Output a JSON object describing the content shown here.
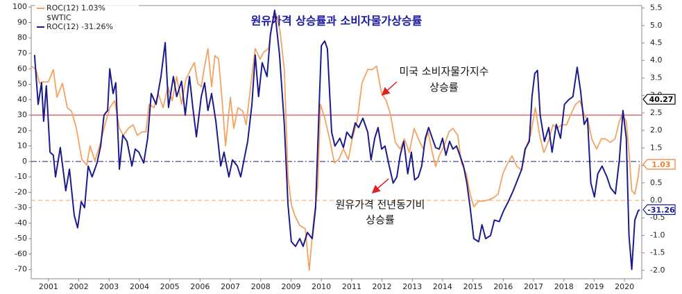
{
  "chart_data": {
    "type": "line",
    "title": "원유가격 상승률과 소비자물가상승률",
    "legend_group_label": "$WTIC",
    "annotations": [
      {
        "lines": [
          "미국 소비자물가지수",
          "상승률"
        ]
      },
      {
        "lines": [
          "원유가격 전년동기비",
          "상승률"
        ]
      }
    ],
    "xlim": [
      2000.43,
      2020.57
    ],
    "xticks": [
      2001,
      2002,
      2003,
      2004,
      2005,
      2006,
      2007,
      2008,
      2009,
      2010,
      2011,
      2012,
      2013,
      2014,
      2015,
      2016,
      2017,
      2018,
      2019,
      2020
    ],
    "ylim": [
      -76,
      101
    ],
    "yticks": [
      -70,
      -60,
      -50,
      -40,
      -30,
      -20,
      -10,
      0,
      10,
      20,
      30,
      40,
      50,
      60,
      70,
      80,
      90,
      100
    ],
    "y2lim": [
      -2.24,
      5.57
    ],
    "y2ticks": [
      {
        "value": -2,
        "label": "-2.0"
      },
      {
        "value": -1.5,
        "label": "-1.5"
      },
      {
        "value": -1,
        "label": "-1.0"
      },
      {
        "value": -0.5,
        "label": "-0.5"
      },
      {
        "value": 0,
        "label": "0.0"
      },
      {
        "value": 0.5,
        "label": "0.5"
      },
      {
        "value": 1,
        "label": "1.0"
      },
      {
        "value": 1.5,
        "label": "1.5"
      },
      {
        "value": 2,
        "label": "2.0"
      },
      {
        "value": 2.5,
        "label": "2.5"
      },
      {
        "value": 3,
        "label": "3.0"
      },
      {
        "value": 3.5,
        "label": "3.5"
      },
      {
        "value": 4,
        "label": "4.0"
      },
      {
        "value": 4.5,
        "label": "4.5"
      },
      {
        "value": 5,
        "label": "5.0"
      },
      {
        "value": 5.5,
        "label": "5.5"
      }
    ],
    "grid": false,
    "reference_lines": [
      {
        "value": 30,
        "axis": "y",
        "color": "#cc2222",
        "style": "solid"
      },
      {
        "value": 0,
        "axis": "y",
        "color": "#1a1a80",
        "style": "dashdot"
      },
      {
        "value": 0,
        "axis": "y2",
        "color": "#f0a060",
        "style": "dashed"
      }
    ],
    "value_tags": [
      {
        "value": 40.27,
        "axis": "y",
        "color": "#000000"
      },
      {
        "value": 1.03,
        "axis": "y2",
        "color": "#f08030"
      },
      {
        "value": -31.26,
        "axis": "y",
        "color": "#1a1a90"
      }
    ],
    "series": [
      {
        "name": "ROC(12) 1.03%",
        "color": "#f4a261",
        "axis": "y2",
        "x": [
          2000.43,
          2000.59,
          2000.7,
          2000.82,
          2001.0,
          2001.16,
          2001.28,
          2001.46,
          2001.62,
          2001.76,
          2001.92,
          2002.1,
          2002.26,
          2002.37,
          2002.53,
          2002.72,
          2002.83,
          2003.02,
          2003.18,
          2003.34,
          2003.47,
          2003.63,
          2003.79,
          2003.93,
          2004.09,
          2004.21,
          2004.32,
          2004.48,
          2004.62,
          2004.78,
          2004.94,
          2005.08,
          2005.23,
          2005.39,
          2005.53,
          2005.69,
          2005.81,
          2005.92,
          2006.04,
          2006.15,
          2006.26,
          2006.38,
          2006.49,
          2006.61,
          2006.72,
          2006.84,
          2007.0,
          2007.11,
          2007.25,
          2007.41,
          2007.52,
          2007.68,
          2007.82,
          2007.98,
          2008.1,
          2008.26,
          2008.37,
          2008.51,
          2008.64,
          2008.78,
          2008.9,
          2009.01,
          2009.12,
          2009.28,
          2009.47,
          2009.6,
          2009.74,
          2009.88,
          2009.97,
          2010.11,
          2010.27,
          2010.43,
          2010.57,
          2010.73,
          2010.89,
          2011.02,
          2011.18,
          2011.34,
          2011.53,
          2011.69,
          2011.82,
          2011.99,
          2012.14,
          2012.28,
          2012.44,
          2012.6,
          2012.74,
          2012.9,
          2013.06,
          2013.2,
          2013.36,
          2013.52,
          2013.66,
          2013.77,
          2013.89,
          2014.05,
          2014.21,
          2014.34,
          2014.5,
          2014.62,
          2014.78,
          2014.91,
          2015.03,
          2015.19,
          2015.35,
          2015.53,
          2015.69,
          2015.83,
          2015.99,
          2016.15,
          2016.29,
          2016.45,
          2016.61,
          2016.74,
          2016.9,
          2017.06,
          2017.2,
          2017.34,
          2017.48,
          2017.64,
          2017.77,
          2017.93,
          2018.09,
          2018.23,
          2018.39,
          2018.53,
          2018.67,
          2018.8,
          2018.92,
          2019.08,
          2019.24,
          2019.37,
          2019.53,
          2019.69,
          2019.83,
          2019.92,
          2020.06,
          2020.15,
          2020.24,
          2020.34,
          2020.45,
          2020.5
        ],
        "values": [
          3.84,
          3.74,
          3.35,
          3.39,
          3.39,
          3.74,
          2.95,
          3.35,
          2.65,
          2.55,
          2.06,
          1.17,
          1.01,
          1.56,
          1.13,
          1.66,
          2.06,
          2.65,
          2.85,
          2.06,
          1.86,
          2.06,
          2.16,
          1.86,
          1.96,
          1.96,
          2.75,
          2.65,
          3.05,
          2.65,
          3.25,
          2.85,
          3.54,
          2.75,
          3.45,
          3.74,
          3.94,
          3.35,
          3.25,
          3.84,
          4.34,
          3.25,
          4.14,
          4.04,
          2.95,
          1.56,
          2.95,
          2.06,
          2.65,
          2.55,
          2.16,
          3.35,
          4.34,
          4.04,
          4.24,
          4.34,
          5.03,
          5.33,
          4.83,
          3.74,
          0.67,
          -0.12,
          -0.42,
          -0.71,
          -0.81,
          -2.0,
          -0.61,
          0.38,
          2.75,
          2.36,
          1.76,
          1.07,
          1.17,
          1.47,
          1.17,
          1.76,
          2.26,
          3.35,
          3.74,
          3.74,
          3.84,
          3.05,
          2.85,
          2.46,
          1.66,
          1.47,
          1.76,
          1.37,
          2.06,
          1.76,
          1.47,
          1.96,
          1.37,
          0.97,
          1.27,
          1.56,
          1.96,
          2.06,
          1.86,
          1.07,
          0.77,
          0.18,
          -0.18,
          -0.02,
          -0.02,
          0.02,
          0.08,
          0.18,
          0.77,
          1.07,
          1.27,
          0.97,
          0.87,
          1.47,
          1.86,
          2.65,
          1.86,
          1.37,
          1.66,
          2.16,
          2.06,
          2.16,
          2.16,
          2.46,
          2.75,
          2.85,
          2.46,
          2.26,
          1.76,
          1.47,
          1.76,
          1.76,
          1.66,
          1.76,
          2.26,
          2.46,
          2.26,
          1.37,
          0.28,
          0.18,
          0.67,
          1.03
        ]
      },
      {
        "name": "ROC(12) -31.26%",
        "color": "#1a1a8c",
        "axis": "y",
        "x": [
          2000.54,
          2000.66,
          2000.77,
          2000.84,
          2000.93,
          2001.05,
          2001.16,
          2001.23,
          2001.39,
          2001.57,
          2001.69,
          2001.85,
          2001.96,
          2002.08,
          2002.19,
          2002.31,
          2002.44,
          2002.6,
          2002.72,
          2002.83,
          2002.95,
          2003.02,
          2003.13,
          2003.22,
          2003.34,
          2003.45,
          2003.59,
          2003.75,
          2003.86,
          2003.98,
          2004.14,
          2004.27,
          2004.39,
          2004.55,
          2004.71,
          2004.85,
          2004.96,
          2005.12,
          2005.23,
          2005.39,
          2005.51,
          2005.65,
          2005.76,
          2005.88,
          2006.04,
          2006.15,
          2006.26,
          2006.38,
          2006.52,
          2006.68,
          2006.79,
          2006.95,
          2007.07,
          2007.23,
          2007.34,
          2007.45,
          2007.57,
          2007.71,
          2007.82,
          2007.93,
          2008.05,
          2008.21,
          2008.32,
          2008.46,
          2008.62,
          2008.78,
          2008.9,
          2009.01,
          2009.15,
          2009.29,
          2009.4,
          2009.54,
          2009.7,
          2009.81,
          2009.93,
          2010.0,
          2010.11,
          2010.2,
          2010.34,
          2010.45,
          2010.61,
          2010.73,
          2010.84,
          2011.0,
          2011.12,
          2011.23,
          2011.37,
          2011.53,
          2011.64,
          2011.76,
          2011.87,
          2011.99,
          2012.1,
          2012.24,
          2012.37,
          2012.49,
          2012.6,
          2012.72,
          2012.85,
          2012.97,
          2013.08,
          2013.2,
          2013.31,
          2013.43,
          2013.54,
          2013.66,
          2013.77,
          2013.89,
          2014.0,
          2014.11,
          2014.23,
          2014.34,
          2014.46,
          2014.57,
          2014.69,
          2014.8,
          2014.91,
          2015.03,
          2015.19,
          2015.3,
          2015.42,
          2015.58,
          2015.71,
          2015.87,
          2016.01,
          2016.17,
          2016.33,
          2016.47,
          2016.61,
          2016.72,
          2016.86,
          2016.95,
          2017.04,
          2017.13,
          2017.22,
          2017.36,
          2017.5,
          2017.61,
          2017.75,
          2017.89,
          2018.02,
          2018.16,
          2018.3,
          2018.44,
          2018.55,
          2018.67,
          2018.78,
          2018.89,
          2019.01,
          2019.12,
          2019.26,
          2019.42,
          2019.54,
          2019.7,
          2019.83,
          2019.95,
          2020.06,
          2020.15,
          2020.24,
          2020.34,
          2020.45,
          2020.5
        ],
        "values": [
          69,
          37,
          51,
          26,
          49,
          6,
          4,
          -10,
          9,
          -19,
          -5,
          -35,
          -43,
          -26,
          -30,
          -3,
          -10,
          -1,
          10,
          30,
          33,
          60,
          44,
          51,
          -5,
          17,
          13,
          -3,
          8,
          6,
          -1,
          15,
          44,
          37,
          55,
          77,
          35,
          55,
          42,
          52,
          30,
          55,
          35,
          16,
          42,
          51,
          33,
          44,
          26,
          -3,
          6,
          -10,
          1,
          -3,
          -10,
          1,
          13,
          37,
          69,
          42,
          64,
          55,
          82,
          98,
          69,
          24,
          -28,
          -52,
          -55,
          -50,
          -55,
          -46,
          -50,
          -30,
          37,
          75,
          78,
          73,
          19,
          10,
          15,
          9,
          19,
          15,
          25,
          22,
          28,
          19,
          1,
          15,
          22,
          8,
          10,
          -3,
          -14,
          -10,
          4,
          13,
          -8,
          6,
          -12,
          -10,
          -3,
          15,
          22,
          15,
          9,
          8,
          15,
          4,
          13,
          8,
          10,
          4,
          -3,
          -14,
          -30,
          -50,
          -52,
          -41,
          -50,
          -48,
          -38,
          -39,
          -32,
          -26,
          -19,
          -12,
          -5,
          8,
          13,
          42,
          57,
          59,
          30,
          13,
          22,
          6,
          24,
          15,
          37,
          40,
          42,
          61,
          46,
          24,
          28,
          -14,
          -23,
          -8,
          -3,
          -10,
          -17,
          -21,
          1,
          33,
          15,
          -48,
          -70,
          -38,
          -32,
          -31.26
        ]
      }
    ]
  }
}
